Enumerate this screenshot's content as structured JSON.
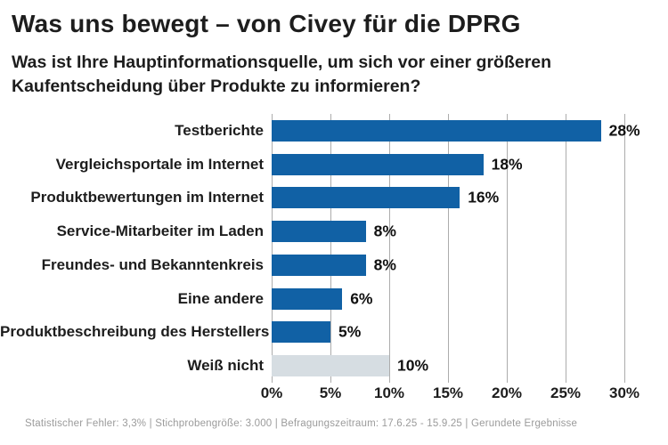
{
  "header": {
    "title": "Was uns bewegt – von Civey für die DPRG",
    "subtitle": "Was ist Ihre Hauptinformationsquelle, um sich vor einer größeren Kaufentscheidung über Produkte zu informieren?"
  },
  "chart_data": {
    "type": "bar",
    "orientation": "horizontal",
    "title": "Was uns bewegt – von Civey für die DPRG",
    "subtitle": "Was ist Ihre Hauptinformationsquelle, um sich vor einer größeren Kaufentscheidung über Produkte zu informieren?",
    "categories": [
      "Testberichte",
      "Vergleichsportale im Internet",
      "Produktbewertungen im Internet",
      "Service-Mitarbeiter im Laden",
      "Freundes- und Bekanntenkreis",
      "Eine andere",
      "Produktbeschreibung des Herstellers",
      "Weiß nicht"
    ],
    "values": [
      28,
      18,
      16,
      8,
      8,
      6,
      5,
      10
    ],
    "value_labels": [
      "28%",
      "18%",
      "16%",
      "8%",
      "8%",
      "6%",
      "5%",
      "10%"
    ],
    "bar_colors": [
      "#1161a5",
      "#1161a5",
      "#1161a5",
      "#1161a5",
      "#1161a5",
      "#1161a5",
      "#1161a5",
      "#d6dde2"
    ],
    "x_ticks": [
      "0%",
      "5%",
      "10%",
      "15%",
      "20%",
      "25%",
      "30%"
    ],
    "x_tick_values": [
      0,
      5,
      10,
      15,
      20,
      25,
      30
    ],
    "xlim": [
      0,
      31
    ],
    "grid": true,
    "legend": "none"
  },
  "colors": {
    "bar_blue": "#1161a5",
    "bar_gray": "#d6dde2",
    "gridline": "#acacac",
    "text": "#1d1d1d",
    "footer_text": "#9b9b9b",
    "background": "#ffffff"
  },
  "footer": {
    "text": "Statistischer Fehler: 3,3% | Stichprobengröße: 3.000 | Befragungszeitraum: 17.6.25 - 15.9.25 | Gerundete Ergebnisse"
  }
}
